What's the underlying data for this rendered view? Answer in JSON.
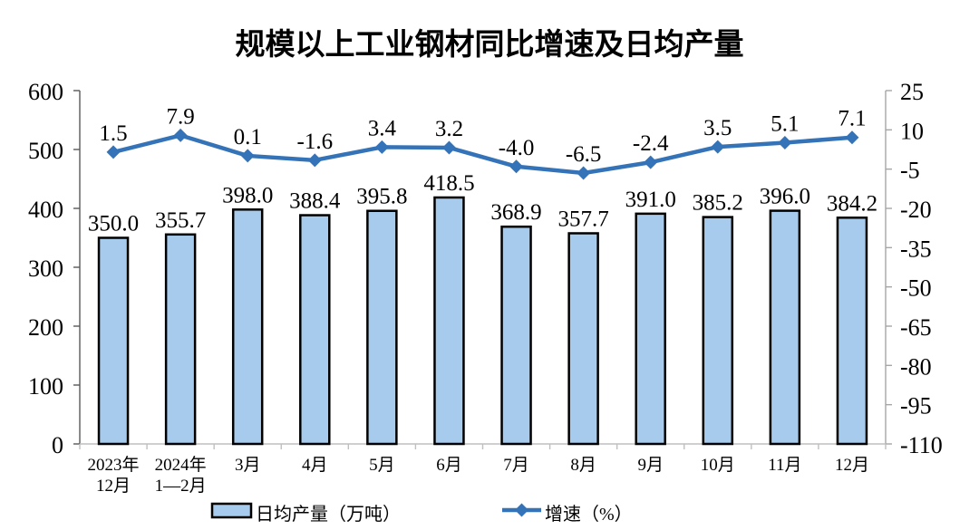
{
  "chart_data": {
    "type": "bar",
    "subtype": "bar-line-combo",
    "title": "规模以上工业钢材同比增速及日均产量",
    "categories": [
      "2023年\n12月",
      "2024年\n1—2月",
      "3月",
      "4月",
      "5月",
      "6月",
      "7月",
      "8月",
      "9月",
      "10月",
      "11月",
      "12月"
    ],
    "series": [
      {
        "name": "日均产量（万吨）",
        "type": "bar",
        "axis": "left",
        "color": "#A6CBEC",
        "border_color": "#000000",
        "values": [
          350.0,
          355.7,
          398.0,
          388.4,
          395.8,
          418.5,
          368.9,
          357.7,
          391.0,
          385.2,
          396.0,
          384.2
        ]
      },
      {
        "name": "增速（%）",
        "type": "line",
        "axis": "right",
        "color": "#3573B8",
        "marker": "diamond",
        "values": [
          1.5,
          7.9,
          0.1,
          -1.6,
          3.4,
          3.2,
          -4.0,
          -6.5,
          -2.4,
          3.5,
          5.1,
          7.1
        ]
      }
    ],
    "axes": {
      "left": {
        "min": 0,
        "max": 600,
        "step": 100,
        "tick_labels": [
          "0",
          "100",
          "200",
          "300",
          "400",
          "500",
          "600"
        ]
      },
      "right": {
        "min": -110,
        "max": 25,
        "step": 15,
        "tick_labels": [
          "25",
          "10",
          "-5",
          "-20",
          "-35",
          "-50",
          "-65",
          "-80",
          "-95",
          "-110"
        ]
      }
    },
    "grid": false,
    "value_label_decimals": 1,
    "legend_position": "bottom"
  }
}
